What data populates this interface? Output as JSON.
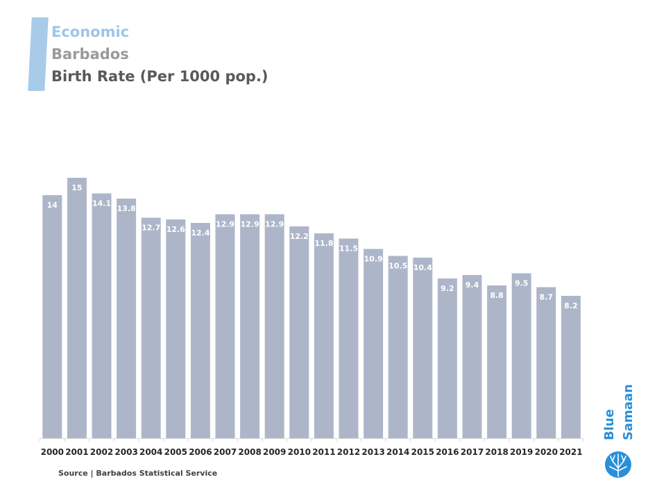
{
  "header": {
    "category": "Economic",
    "country": "Barbados",
    "title": "Birth Rate (Per 1000 pop.)"
  },
  "source": "Source | Barbados Statistical Service",
  "logo": {
    "line1": "Blue",
    "line2": "Samaan"
  },
  "colors": {
    "bar": "#adb6c9",
    "accent": "#a9cbea",
    "brand": "#2a8fd8"
  },
  "chart_data": {
    "type": "bar",
    "title": "Birth Rate (Per 1000 pop.)",
    "xlabel": "",
    "ylabel": "",
    "ylim": [
      0,
      16
    ],
    "grid": false,
    "categories": [
      "2000",
      "2001",
      "2002",
      "2003",
      "2004",
      "2005",
      "2006",
      "2007",
      "2008",
      "2009",
      "2010",
      "2011",
      "2012",
      "2013",
      "2014",
      "2015",
      "2016",
      "2017",
      "2018",
      "2019",
      "2020",
      "2021"
    ],
    "values": [
      14,
      15,
      14.1,
      13.8,
      12.7,
      12.6,
      12.4,
      12.9,
      12.9,
      12.9,
      12.2,
      11.8,
      11.5,
      10.9,
      10.5,
      10.4,
      9.2,
      9.4,
      8.8,
      9.5,
      8.7,
      8.2
    ],
    "labels": [
      "14",
      "15",
      "14.1",
      "13.8",
      "12.7",
      "12.6",
      "12.4",
      "12.9",
      "12.9",
      "12.9",
      "12.2",
      "11.8",
      "11.5",
      "10.9",
      "10.5",
      "10.4",
      "9.2",
      "9.4",
      "8.8",
      "9.5",
      "8.7",
      "8.2"
    ]
  }
}
